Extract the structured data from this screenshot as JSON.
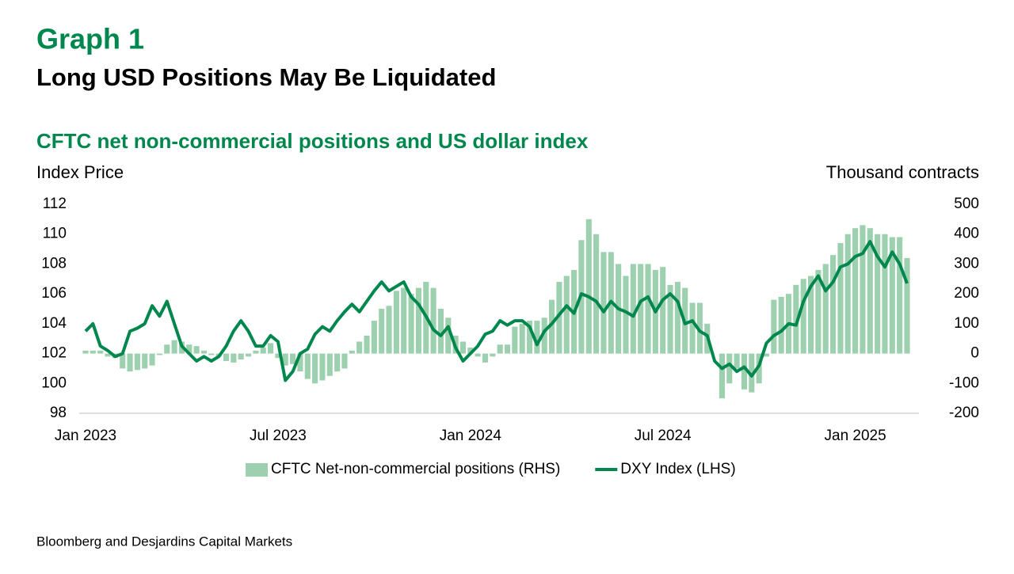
{
  "header": {
    "label": "Graph 1",
    "title": "Long USD Positions May Be Liquidated"
  },
  "source": "Bloomberg and Desjardins Capital Markets",
  "chart_data": {
    "type": "bar-line",
    "title": "CFTC net non-commercial positions and US dollar index",
    "ylabel": "Index Price",
    "y2label": "Thousand contracts",
    "categories": [
      "Jan 2023",
      null,
      null,
      null,
      null,
      null,
      null,
      null,
      null,
      null,
      null,
      null,
      null,
      null,
      null,
      null,
      null,
      null,
      null,
      null,
      null,
      null,
      null,
      null,
      null,
      null,
      "Jul 2023",
      null,
      null,
      null,
      null,
      null,
      null,
      null,
      null,
      null,
      null,
      null,
      null,
      null,
      null,
      null,
      null,
      null,
      null,
      null,
      null,
      null,
      null,
      null,
      null,
      null,
      "Jan 2024",
      null,
      null,
      null,
      null,
      null,
      null,
      null,
      null,
      null,
      null,
      null,
      null,
      null,
      null,
      null,
      null,
      null,
      null,
      null,
      null,
      null,
      null,
      null,
      null,
      null,
      "Jul 2024",
      null,
      null,
      null,
      null,
      null,
      null,
      null,
      null,
      null,
      null,
      null,
      null,
      null,
      null,
      null,
      null,
      null,
      null,
      null,
      null,
      null,
      null,
      null,
      null,
      null,
      "Jan 2025",
      null,
      null,
      null,
      null,
      null,
      null,
      null
    ],
    "series": [
      {
        "name": "CFTC Net-non-commercial positions (RHS)",
        "type": "bar",
        "axis": "y2",
        "color": "#9dd0ae",
        "values": [
          10,
          10,
          10,
          -10,
          -15,
          -50,
          -60,
          -55,
          -50,
          -40,
          -5,
          30,
          45,
          40,
          30,
          25,
          10,
          -5,
          -10,
          -25,
          -30,
          -20,
          -10,
          10,
          20,
          35,
          -15,
          -40,
          -35,
          -60,
          -85,
          -100,
          -90,
          -75,
          -60,
          -50,
          10,
          40,
          60,
          110,
          150,
          160,
          210,
          220,
          200,
          220,
          240,
          220,
          150,
          120,
          60,
          40,
          20,
          -10,
          -30,
          -10,
          30,
          30,
          90,
          100,
          110,
          110,
          120,
          180,
          240,
          260,
          280,
          380,
          450,
          400,
          340,
          340,
          300,
          260,
          300,
          300,
          300,
          280,
          290,
          230,
          240,
          220,
          170,
          170,
          100,
          0,
          -150,
          -100,
          -50,
          -120,
          -130,
          -100,
          -10,
          180,
          190,
          200,
          230,
          250,
          260,
          280,
          300,
          330,
          370,
          400,
          420,
          430,
          420,
          400,
          400,
          390,
          390,
          320
        ]
      },
      {
        "name": "DXY Index (LHS)",
        "type": "line",
        "axis": "y",
        "color": "#00874d",
        "values": [
          103.5,
          104,
          102.5,
          102.2,
          101.8,
          102,
          103.5,
          103.7,
          104,
          105.2,
          104.5,
          105.5,
          104,
          102.5,
          102,
          101.5,
          101.8,
          101.5,
          101.8,
          102.5,
          103.5,
          104.2,
          103.5,
          102.5,
          102.5,
          103.2,
          102.8,
          100.2,
          100.8,
          102,
          102.3,
          103.3,
          103.8,
          103.5,
          104.2,
          104.8,
          105.3,
          104.8,
          105.5,
          106.2,
          106.8,
          106.2,
          106.5,
          106.8,
          105.8,
          105.3,
          104.5,
          103.6,
          103.2,
          103.8,
          102.4,
          101.5,
          102,
          102.5,
          103.3,
          103.5,
          104.2,
          103.9,
          104.2,
          104.2,
          103.8,
          102.6,
          103.5,
          104,
          104.6,
          105.2,
          104.7,
          106,
          105.8,
          105.5,
          104.8,
          105.5,
          105,
          104.8,
          104.5,
          105.5,
          105.8,
          104.8,
          105.6,
          106,
          105.5,
          104,
          104.2,
          103.5,
          103.2,
          101.5,
          101,
          101.3,
          100.8,
          101.1,
          100.5,
          101.2,
          102.7,
          103.2,
          103.5,
          104,
          103.9,
          105.5,
          106.5,
          107.2,
          106.2,
          106.8,
          107.8,
          108,
          108.5,
          108.7,
          109.5,
          108.5,
          107.8,
          108.8,
          108,
          106.7
        ]
      }
    ],
    "ylim": [
      98,
      112
    ],
    "yticks": [
      98,
      100,
      102,
      104,
      106,
      108,
      110,
      112
    ],
    "y2lim": [
      -200,
      500
    ],
    "y2ticks": [
      -200,
      -100,
      0,
      100,
      200,
      300,
      400,
      500
    ],
    "grid": false
  }
}
